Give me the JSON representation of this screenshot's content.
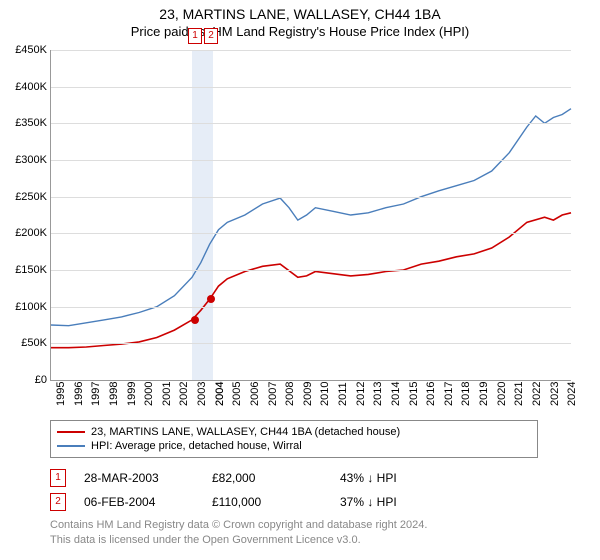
{
  "title": "23, MARTINS LANE, WALLASEY, CH44 1BA",
  "subtitle": "Price paid vs. HM Land Registry's House Price Index (HPI)",
  "chart": {
    "type": "line",
    "background_color": "#ffffff",
    "grid_color": "#dddddd",
    "axis_color": "#999999",
    "x_years": [
      1995,
      1996,
      1997,
      1998,
      1999,
      2000,
      2001,
      2002,
      2003,
      2004,
      2004,
      2005,
      2006,
      2007,
      2008,
      2009,
      2010,
      2011,
      2012,
      2013,
      2014,
      2015,
      2016,
      2017,
      2018,
      2019,
      2020,
      2021,
      2022,
      2023,
      2024
    ],
    "ylim": [
      0,
      450000
    ],
    "ytick_step": 50000,
    "ylabels": [
      "£0",
      "£50K",
      "£100K",
      "£150K",
      "£200K",
      "£250K",
      "£300K",
      "£350K",
      "£400K",
      "£450K"
    ],
    "highlight_band": {
      "start_year": 2003,
      "end_year": 2004.2,
      "color": "#e6edf7"
    },
    "series": [
      {
        "name": "property",
        "label": "23, MARTINS LANE, WALLASEY, CH44 1BA (detached house)",
        "color": "#cc0000",
        "line_width": 1.6,
        "data": [
          [
            1995,
            44000
          ],
          [
            1996,
            44000
          ],
          [
            1997,
            45000
          ],
          [
            1998,
            47000
          ],
          [
            1999,
            49000
          ],
          [
            2000,
            52000
          ],
          [
            2001,
            58000
          ],
          [
            2002,
            68000
          ],
          [
            2003,
            82000
          ],
          [
            2003.5,
            95000
          ],
          [
            2004,
            110000
          ],
          [
            2004.5,
            128000
          ],
          [
            2005,
            138000
          ],
          [
            2006,
            148000
          ],
          [
            2007,
            155000
          ],
          [
            2008,
            158000
          ],
          [
            2009,
            140000
          ],
          [
            2009.5,
            142000
          ],
          [
            2010,
            148000
          ],
          [
            2011,
            145000
          ],
          [
            2012,
            142000
          ],
          [
            2013,
            144000
          ],
          [
            2014,
            148000
          ],
          [
            2015,
            150000
          ],
          [
            2016,
            158000
          ],
          [
            2017,
            162000
          ],
          [
            2018,
            168000
          ],
          [
            2019,
            172000
          ],
          [
            2020,
            180000
          ],
          [
            2021,
            195000
          ],
          [
            2022,
            215000
          ],
          [
            2023,
            222000
          ],
          [
            2023.5,
            218000
          ],
          [
            2024,
            225000
          ],
          [
            2024.5,
            228000
          ]
        ]
      },
      {
        "name": "hpi",
        "label": "HPI: Average price, detached house, Wirral",
        "color": "#4a7ebb",
        "line_width": 1.4,
        "data": [
          [
            1995,
            75000
          ],
          [
            1996,
            74000
          ],
          [
            1997,
            78000
          ],
          [
            1998,
            82000
          ],
          [
            1999,
            86000
          ],
          [
            2000,
            92000
          ],
          [
            2001,
            100000
          ],
          [
            2002,
            115000
          ],
          [
            2003,
            140000
          ],
          [
            2003.5,
            160000
          ],
          [
            2004,
            185000
          ],
          [
            2004.5,
            205000
          ],
          [
            2005,
            215000
          ],
          [
            2006,
            225000
          ],
          [
            2007,
            240000
          ],
          [
            2008,
            248000
          ],
          [
            2008.5,
            235000
          ],
          [
            2009,
            218000
          ],
          [
            2009.5,
            225000
          ],
          [
            2010,
            235000
          ],
          [
            2011,
            230000
          ],
          [
            2012,
            225000
          ],
          [
            2013,
            228000
          ],
          [
            2014,
            235000
          ],
          [
            2015,
            240000
          ],
          [
            2016,
            250000
          ],
          [
            2017,
            258000
          ],
          [
            2018,
            265000
          ],
          [
            2019,
            272000
          ],
          [
            2020,
            285000
          ],
          [
            2021,
            310000
          ],
          [
            2022,
            345000
          ],
          [
            2022.5,
            360000
          ],
          [
            2023,
            350000
          ],
          [
            2023.5,
            358000
          ],
          [
            2024,
            362000
          ],
          [
            2024.5,
            370000
          ]
        ]
      }
    ],
    "data_points": [
      {
        "id": "1",
        "year": 2003.17,
        "value": 82000,
        "color": "#cc0000"
      },
      {
        "id": "2",
        "year": 2004.08,
        "value": 110000,
        "color": "#cc0000"
      }
    ],
    "title_fontsize": 14,
    "label_fontsize": 11
  },
  "legend_items": [
    {
      "color": "#cc0000",
      "label": "23, MARTINS LANE, WALLASEY, CH44 1BA (detached house)"
    },
    {
      "color": "#4a7ebb",
      "label": "HPI: Average price, detached house, Wirral"
    }
  ],
  "transactions": [
    {
      "id": "1",
      "date": "28-MAR-2003",
      "price": "£82,000",
      "delta": "43% ↓ HPI",
      "color": "#cc0000"
    },
    {
      "id": "2",
      "date": "06-FEB-2004",
      "price": "£110,000",
      "delta": "37% ↓ HPI",
      "color": "#cc0000"
    }
  ],
  "footer_line1": "Contains HM Land Registry data © Crown copyright and database right 2024.",
  "footer_line2": "This data is licensed under the Open Government Licence v3.0."
}
